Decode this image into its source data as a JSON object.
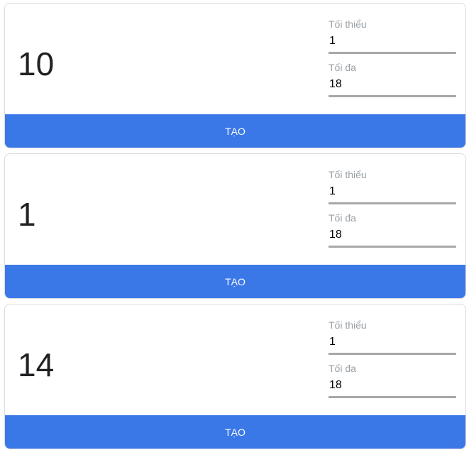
{
  "cards": [
    {
      "result": "10",
      "min_label": "Tối thiểu",
      "min": "1",
      "max_label": "Tối đa",
      "max": "18",
      "button": "TẠO"
    },
    {
      "result": "1",
      "min_label": "Tối thiểu",
      "min": "1",
      "max_label": "Tối đa",
      "max": "18",
      "button": "TẠO"
    },
    {
      "result": "14",
      "min_label": "Tối thiểu",
      "min": "1",
      "max_label": "Tối đa",
      "max": "18",
      "button": "TẠO"
    }
  ],
  "colors": {
    "button": "#3b78e7"
  }
}
